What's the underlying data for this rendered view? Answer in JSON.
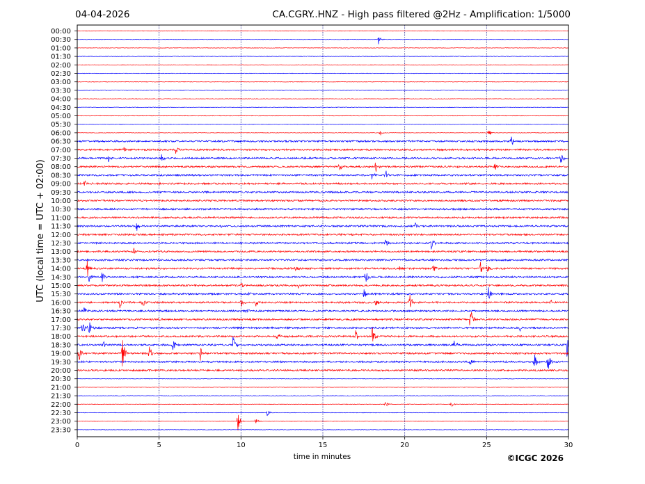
{
  "header": {
    "date": "04-04-2026",
    "title": "CA.CGRY..HNZ - High pass filtered @2Hz - Amplification: 1/5000"
  },
  "footer": {
    "copyright": "©ICGC 2026"
  },
  "colors": {
    "red": "#ff0000",
    "blue": "#0000ff",
    "grid": "#000080"
  },
  "chart_data": {
    "type": "line",
    "title": "CA.CGRY..HNZ - High pass filtered @2Hz - Amplification: 1/5000",
    "xlabel": "time in minutes",
    "ylabel": "UTC (local time = UTC + 02:00)",
    "xlim": [
      0,
      30
    ],
    "x_ticks": [
      0,
      5,
      10,
      15,
      20,
      25,
      30
    ],
    "grid": "vertical dotted lines at 5, 10, 15, 20, 25",
    "row_labels": [
      "00:00",
      "00:30",
      "01:00",
      "01:30",
      "02:00",
      "02:30",
      "03:00",
      "03:30",
      "04:00",
      "04:30",
      "05:00",
      "05:30",
      "06:00",
      "06:30",
      "07:00",
      "07:30",
      "08:00",
      "08:30",
      "09:00",
      "09:30",
      "10:00",
      "10:30",
      "11:00",
      "11:30",
      "12:00",
      "12:30",
      "13:00",
      "13:30",
      "14:00",
      "14:30",
      "15:00",
      "15:30",
      "16:00",
      "16:30",
      "17:00",
      "17:30",
      "18:00",
      "18:30",
      "19:00",
      "19:30",
      "20:00",
      "20:30",
      "21:00",
      "21:30",
      "22:00",
      "22:30",
      "23:00",
      "23:30"
    ],
    "row_colors": "alternating red (00 minute rows) and blue (30 minute rows)",
    "events": [
      {
        "row": 1,
        "minute": 18.4,
        "amp": 0.6
      },
      {
        "row": 12,
        "minute": 18.5,
        "amp": 0.4
      },
      {
        "row": 12,
        "minute": 25.1,
        "amp": 0.6
      },
      {
        "row": 13,
        "minute": 26.5,
        "amp": 0.7
      },
      {
        "row": 14,
        "minute": 2.8,
        "amp": 0.5
      },
      {
        "row": 14,
        "minute": 6.0,
        "amp": 0.5
      },
      {
        "row": 15,
        "minute": 1.9,
        "amp": 0.6
      },
      {
        "row": 15,
        "minute": 5.1,
        "amp": 0.8
      },
      {
        "row": 15,
        "minute": 29.5,
        "amp": 1.0
      },
      {
        "row": 16,
        "minute": 16.0,
        "amp": 0.8
      },
      {
        "row": 16,
        "minute": 18.2,
        "amp": 1.0
      },
      {
        "row": 16,
        "minute": 25.5,
        "amp": 0.6
      },
      {
        "row": 17,
        "minute": 18.0,
        "amp": 0.6
      },
      {
        "row": 17,
        "minute": 18.8,
        "amp": 0.8
      },
      {
        "row": 18,
        "minute": 0.4,
        "amp": 0.6
      },
      {
        "row": 23,
        "minute": 3.6,
        "amp": 0.9
      },
      {
        "row": 23,
        "minute": 8.7,
        "amp": 0.5
      },
      {
        "row": 23,
        "minute": 20.6,
        "amp": 0.5
      },
      {
        "row": 25,
        "minute": 18.8,
        "amp": 0.7
      },
      {
        "row": 25,
        "minute": 21.6,
        "amp": 1.0
      },
      {
        "row": 26,
        "minute": 3.4,
        "amp": 0.8
      },
      {
        "row": 28,
        "minute": 0.6,
        "amp": 1.3
      },
      {
        "row": 28,
        "minute": 13.3,
        "amp": 0.7
      },
      {
        "row": 28,
        "minute": 19.7,
        "amp": 0.8
      },
      {
        "row": 28,
        "minute": 21.7,
        "amp": 0.8
      },
      {
        "row": 28,
        "minute": 24.6,
        "amp": 1.0
      },
      {
        "row": 28,
        "minute": 25.0,
        "amp": 0.9
      },
      {
        "row": 29,
        "minute": 0.7,
        "amp": 0.8
      },
      {
        "row": 29,
        "minute": 1.5,
        "amp": 0.9
      },
      {
        "row": 29,
        "minute": 17.6,
        "amp": 1.3
      },
      {
        "row": 30,
        "minute": 10.0,
        "amp": 0.7
      },
      {
        "row": 30,
        "minute": 13.5,
        "amp": 0.5
      },
      {
        "row": 31,
        "minute": 10.5,
        "amp": 0.6
      },
      {
        "row": 31,
        "minute": 17.5,
        "amp": 0.9
      },
      {
        "row": 31,
        "minute": 25.1,
        "amp": 1.2
      },
      {
        "row": 32,
        "minute": 2.6,
        "amp": 0.7
      },
      {
        "row": 32,
        "minute": 4.0,
        "amp": 0.7
      },
      {
        "row": 32,
        "minute": 10.0,
        "amp": 0.8
      },
      {
        "row": 32,
        "minute": 10.9,
        "amp": 1.0
      },
      {
        "row": 32,
        "minute": 18.2,
        "amp": 0.7
      },
      {
        "row": 32,
        "minute": 20.3,
        "amp": 1.5
      },
      {
        "row": 32,
        "minute": 28.9,
        "amp": 0.5
      },
      {
        "row": 33,
        "minute": 0.4,
        "amp": 0.5
      },
      {
        "row": 33,
        "minute": 10.3,
        "amp": 1.1
      },
      {
        "row": 34,
        "minute": 24.0,
        "amp": 2.6
      },
      {
        "row": 35,
        "minute": 0.3,
        "amp": 1.5
      },
      {
        "row": 35,
        "minute": 0.7,
        "amp": 1.1
      },
      {
        "row": 35,
        "minute": 27.0,
        "amp": 0.5
      },
      {
        "row": 36,
        "minute": 12.2,
        "amp": 1.0
      },
      {
        "row": 36,
        "minute": 17.0,
        "amp": 0.8
      },
      {
        "row": 36,
        "minute": 18.0,
        "amp": 1.4
      },
      {
        "row": 37,
        "minute": 1.6,
        "amp": 0.6
      },
      {
        "row": 37,
        "minute": 5.8,
        "amp": 1.1
      },
      {
        "row": 37,
        "minute": 9.5,
        "amp": 1.3
      },
      {
        "row": 37,
        "minute": 23.0,
        "amp": 0.9
      },
      {
        "row": 37,
        "minute": 29.9,
        "amp": 1.6
      },
      {
        "row": 38,
        "minute": 0.1,
        "amp": 1.5
      },
      {
        "row": 38,
        "minute": 2.75,
        "amp": 2.5
      },
      {
        "row": 38,
        "minute": 4.4,
        "amp": 1.1
      },
      {
        "row": 38,
        "minute": 7.5,
        "amp": 1.0
      },
      {
        "row": 39,
        "minute": 24.0,
        "amp": 0.6
      },
      {
        "row": 39,
        "minute": 27.9,
        "amp": 1.3
      },
      {
        "row": 39,
        "minute": 28.7,
        "amp": 1.8
      },
      {
        "row": 44,
        "minute": 18.8,
        "amp": 0.5
      },
      {
        "row": 44,
        "minute": 22.8,
        "amp": 0.6
      },
      {
        "row": 45,
        "minute": 11.6,
        "amp": 0.6
      },
      {
        "row": 46,
        "minute": 9.8,
        "amp": 1.3
      },
      {
        "row": 46,
        "minute": 10.9,
        "amp": 0.5
      }
    ]
  }
}
